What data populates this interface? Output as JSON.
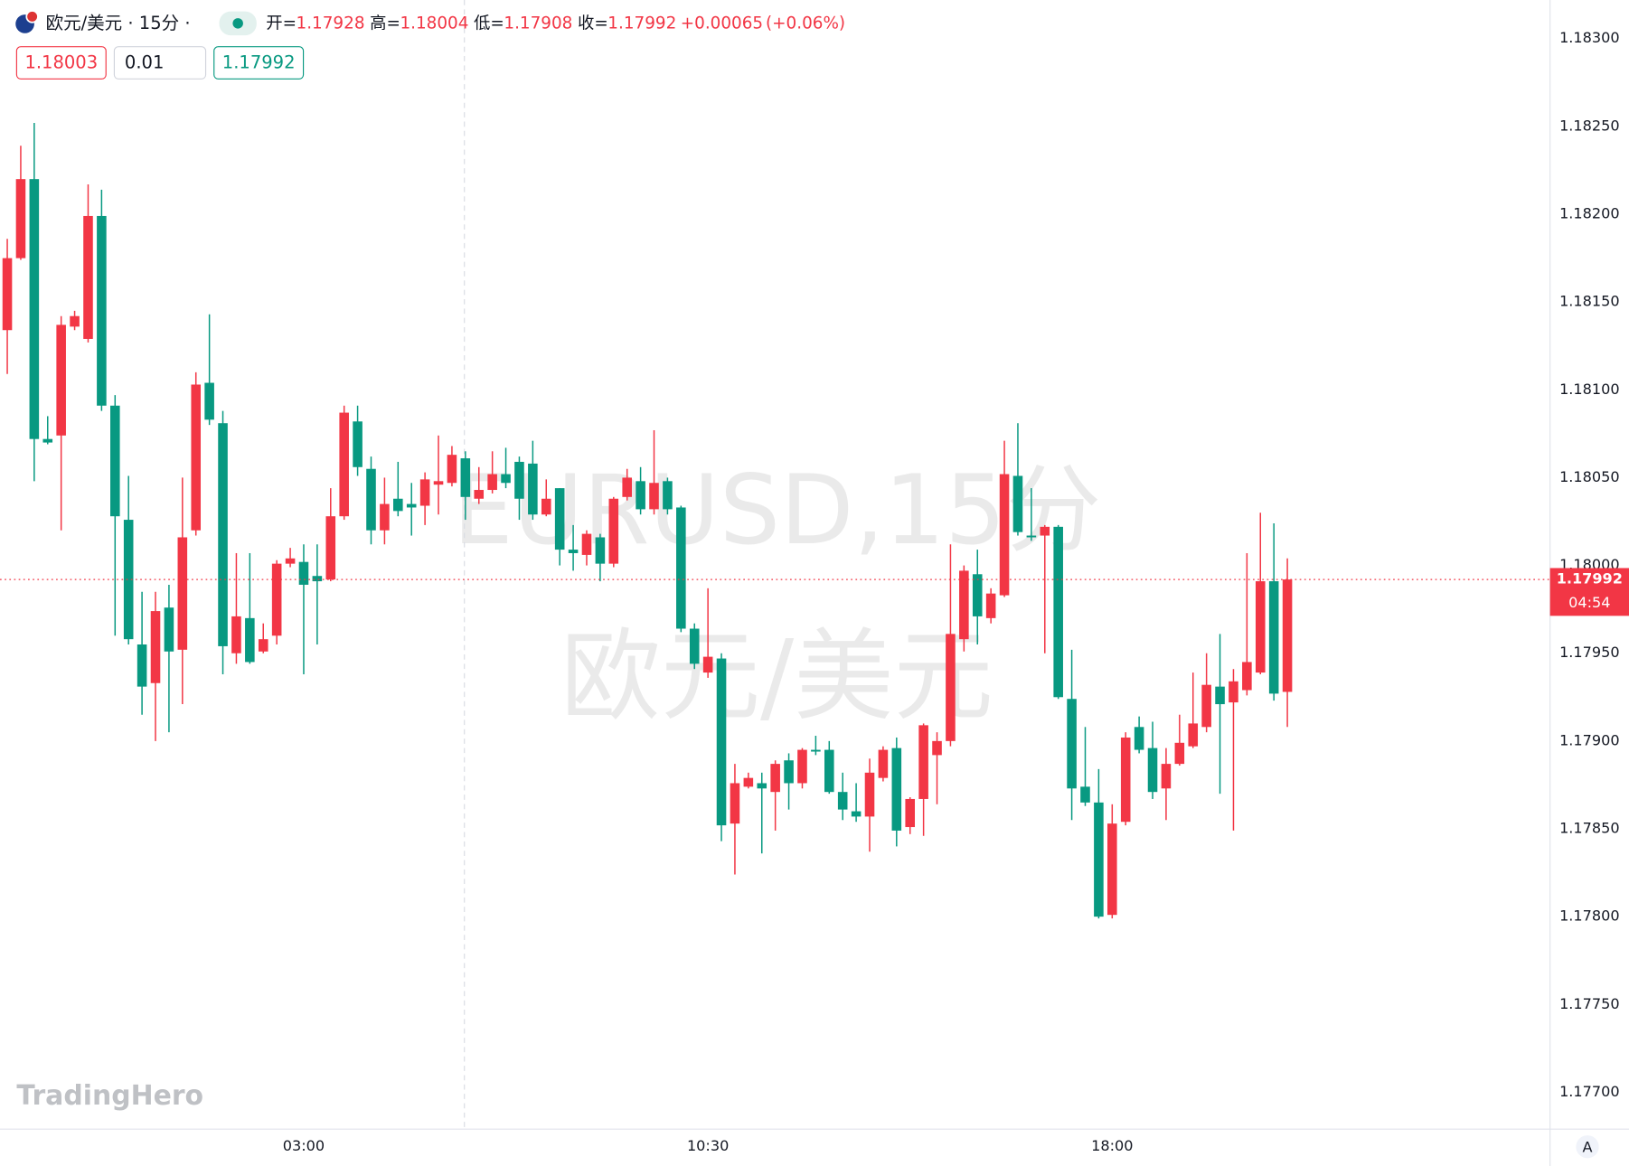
{
  "header": {
    "symbol": "欧元/美元 · 15分 ·",
    "open_label": "开=",
    "high_label": "高=",
    "low_label": "低=",
    "close_label": "收=",
    "change": "+0.00065",
    "change_pct": "(+0.06%)"
  },
  "toolbar": {
    "sell": 1.18003,
    "lot": 0.01,
    "buy": 1.17992
  },
  "watermark": {
    "symbol": "EURUSD,15分",
    "name": "欧元/美元"
  },
  "price_tag": {
    "countdown": "04:54"
  },
  "logo": "TradingHero",
  "scale_button": "A",
  "chart_data": {
    "type": "candlestick",
    "up_color": "#f23645",
    "down_color": "#089981",
    "grid": false,
    "categories": [
      null,
      null,
      null,
      null,
      null,
      null,
      null,
      null,
      null,
      null,
      null,
      null,
      null,
      null,
      null,
      null,
      null,
      null,
      null,
      null,
      null,
      null,
      "03:00",
      null,
      null,
      null,
      null,
      null,
      null,
      null,
      null,
      null,
      null,
      null,
      null,
      null,
      null,
      null,
      null,
      null,
      null,
      null,
      null,
      null,
      null,
      null,
      null,
      null,
      null,
      null,
      null,
      null,
      "10:30",
      null,
      null,
      null,
      null,
      null,
      null,
      null,
      null,
      null,
      null,
      null,
      null,
      null,
      null,
      null,
      null,
      null,
      null,
      null,
      null,
      null,
      null,
      null,
      null,
      null,
      null,
      null,
      null,
      null,
      "18:00",
      null,
      null,
      null,
      null,
      null,
      null,
      null,
      null,
      null,
      null,
      null,
      null,
      null
    ],
    "open": [
      1.18134,
      1.18175,
      1.1822,
      1.18072,
      1.18074,
      1.18136,
      1.18129,
      1.18199,
      1.18091,
      1.18026,
      1.17955,
      1.17933,
      1.17976,
      1.17952,
      1.1802,
      1.18104,
      1.18081,
      1.1795,
      1.1797,
      1.17951,
      1.1796,
      1.18001,
      1.18002,
      1.17994,
      1.17992,
      1.18028,
      1.18082,
      1.18055,
      1.1802,
      1.18038,
      1.18035,
      1.18034,
      1.18046,
      1.18047,
      1.18061,
      1.18038,
      1.18043,
      1.18052,
      1.18059,
      1.18058,
      1.18029,
      1.18044,
      1.18009,
      1.18006,
      1.18016,
      1.18001,
      1.18039,
      1.18048,
      1.18032,
      1.18048,
      1.18033,
      1.17964,
      1.17939,
      1.17947,
      1.17853,
      1.17874,
      1.17876,
      1.17871,
      1.17889,
      1.17876,
      1.17895,
      1.17895,
      1.17871,
      1.1786,
      1.17857,
      1.17879,
      1.17896,
      1.17851,
      1.17867,
      1.17892,
      1.179,
      1.17958,
      1.17995,
      1.1797,
      1.17983,
      1.18051,
      1.18017,
      1.18017,
      1.18022,
      1.17924,
      1.17874,
      1.17865,
      1.17801,
      1.17854,
      1.17908,
      1.17896,
      1.17873,
      1.17887,
      1.17897,
      1.17908,
      1.17931,
      1.17922,
      1.17929,
      1.17939,
      1.17991,
      1.17928
    ],
    "high": [
      1.18186,
      1.18239,
      1.18252,
      1.18085,
      1.18142,
      1.18145,
      1.18217,
      1.18214,
      1.18097,
      1.18051,
      1.17985,
      1.17985,
      1.17989,
      1.1805,
      1.1811,
      1.18143,
      1.18088,
      1.18007,
      1.18007,
      1.17967,
      1.18003,
      1.1801,
      1.18012,
      1.18012,
      1.18044,
      1.18091,
      1.18091,
      1.18062,
      1.1805,
      1.18059,
      1.18047,
      1.18053,
      1.18074,
      1.18068,
      1.18065,
      1.18056,
      1.18065,
      1.18067,
      1.18062,
      1.18071,
      1.18049,
      1.18044,
      1.18023,
      1.1802,
      1.18018,
      1.18039,
      1.18055,
      1.18056,
      1.18077,
      1.1805,
      1.18034,
      1.17967,
      1.17987,
      1.1795,
      1.17887,
      1.17882,
      1.17882,
      1.17889,
      1.17893,
      1.17896,
      1.17903,
      1.179,
      1.17882,
      1.17876,
      1.1789,
      1.17897,
      1.17902,
      1.17868,
      1.1791,
      1.17905,
      1.18012,
      1.18,
      1.18009,
      1.17987,
      1.18071,
      1.18081,
      1.18044,
      1.18023,
      1.18023,
      1.17952,
      1.17908,
      1.17884,
      1.17864,
      1.17905,
      1.17914,
      1.17911,
      1.17896,
      1.17915,
      1.17939,
      1.1795,
      1.17961,
      1.17941,
      1.18007,
      1.1803,
      1.18024,
      1.18004
    ],
    "low": [
      1.18109,
      1.18174,
      1.18048,
      1.18069,
      1.1802,
      1.18134,
      1.18127,
      1.18088,
      1.1796,
      1.17955,
      1.17915,
      1.179,
      1.17905,
      1.17921,
      1.18017,
      1.1808,
      1.17938,
      1.17944,
      1.17944,
      1.1795,
      1.17955,
      1.17999,
      1.17938,
      1.17955,
      1.17991,
      1.18026,
      1.18051,
      1.18012,
      1.18012,
      1.18028,
      1.18017,
      1.18023,
      1.18029,
      1.18045,
      1.18026,
      1.18035,
      1.18041,
      1.18044,
      1.18026,
      1.18026,
      1.18028,
      1.18,
      1.17997,
      1.18,
      1.17991,
      1.17999,
      1.18037,
      1.18029,
      1.18029,
      1.18029,
      1.17962,
      1.17941,
      1.17936,
      1.17843,
      1.17824,
      1.17873,
      1.17836,
      1.17849,
      1.17861,
      1.17873,
      1.17892,
      1.1787,
      1.17855,
      1.17854,
      1.17837,
      1.17877,
      1.1784,
      1.17847,
      1.17846,
      1.17864,
      1.17897,
      1.17951,
      1.17955,
      1.17967,
      1.17982,
      1.18017,
      1.18014,
      1.1795,
      1.17924,
      1.17855,
      1.17863,
      1.17799,
      1.17799,
      1.17852,
      1.17893,
      1.17867,
      1.17855,
      1.17886,
      1.17896,
      1.17905,
      1.1787,
      1.17849,
      1.17926,
      1.17938,
      1.17923,
      1.17908
    ],
    "close": [
      1.18175,
      1.1822,
      1.18072,
      1.1807,
      1.18137,
      1.18142,
      1.18199,
      1.18091,
      1.18028,
      1.17958,
      1.17931,
      1.17974,
      1.17951,
      1.18016,
      1.18103,
      1.18083,
      1.17954,
      1.17971,
      1.17945,
      1.17958,
      1.18001,
      1.18004,
      1.17989,
      1.17991,
      1.18028,
      1.18087,
      1.18056,
      1.1802,
      1.18035,
      1.18031,
      1.18033,
      1.18049,
      1.18048,
      1.18063,
      1.18039,
      1.18043,
      1.18052,
      1.18047,
      1.18038,
      1.18029,
      1.18038,
      1.18009,
      1.18007,
      1.18018,
      1.18001,
      1.18038,
      1.1805,
      1.18032,
      1.18047,
      1.18032,
      1.17964,
      1.17944,
      1.17948,
      1.17852,
      1.17876,
      1.17879,
      1.17873,
      1.17887,
      1.17876,
      1.17895,
      1.17894,
      1.17871,
      1.17861,
      1.17857,
      1.17882,
      1.17895,
      1.17849,
      1.17867,
      1.17909,
      1.179,
      1.17961,
      1.17997,
      1.17971,
      1.17984,
      1.18052,
      1.18019,
      1.18016,
      1.18022,
      1.17925,
      1.17873,
      1.17865,
      1.178,
      1.17853,
      1.17902,
      1.17895,
      1.17871,
      1.17887,
      1.17899,
      1.1791,
      1.17932,
      1.17921,
      1.17934,
      1.17945,
      1.17991,
      1.17927,
      1.17992
    ],
    "ylim": [
      1.17679,
      1.18322
    ],
    "yticks": [
      {
        "value": 1.177,
        "label": "1.17700"
      },
      {
        "value": 1.1775,
        "label": "1.17750"
      },
      {
        "value": 1.178,
        "label": "1.17800"
      },
      {
        "value": 1.1785,
        "label": "1.17850"
      },
      {
        "value": 1.179,
        "label": "1.17900"
      },
      {
        "value": 1.1795,
        "label": "1.17950"
      },
      {
        "value": 1.18,
        "label": "1.18000"
      },
      {
        "value": 1.1805,
        "label": "1.18050"
      },
      {
        "value": 1.181,
        "label": "1.18100"
      },
      {
        "value": 1.1815,
        "label": "1.18150"
      },
      {
        "value": 1.182,
        "label": "1.18200"
      },
      {
        "value": 1.1825,
        "label": "1.18250"
      },
      {
        "value": 1.183,
        "label": "1.18300"
      }
    ]
  }
}
